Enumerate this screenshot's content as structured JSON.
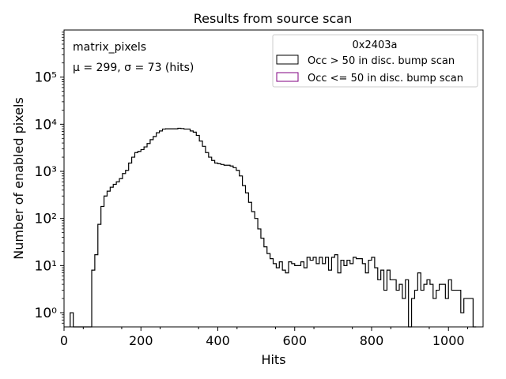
{
  "chart_data": {
    "type": "histogram",
    "title": "Results from source scan",
    "xlabel": "Hits",
    "ylabel": "Number of enabled pixels",
    "xlim": [
      0,
      1090
    ],
    "ylim": [
      0.5,
      1000000
    ],
    "yscale": "log",
    "grid": false,
    "bin_width": 8,
    "x_ticks": [
      0,
      200,
      400,
      600,
      800,
      1000
    ],
    "x_tick_labels": [
      "0",
      "200",
      "400",
      "600",
      "800",
      "1000"
    ],
    "y_ticks": [
      1,
      10,
      100,
      1000,
      10000,
      100000
    ],
    "y_tick_labels": [
      "10⁰",
      "10¹",
      "10²",
      "10³",
      "10⁴",
      "10⁵"
    ],
    "annotations": {
      "dataset": "matrix_pixels",
      "stats": "μ = 299, σ = 73 (hits)"
    },
    "legend": {
      "title": "0x2403a",
      "placement": "top-right",
      "entries": [
        {
          "label": "Occ > 50 in disc. bump scan",
          "color": "#000000"
        },
        {
          "label": "Occ <= 50 in disc. bump scan",
          "color": "#800080"
        }
      ]
    },
    "series": [
      {
        "name": "Occ > 50 in disc. bump scan",
        "color": "#000000",
        "bins": [
          [
            16,
            24,
            1
          ],
          [
            24,
            32,
            0
          ],
          [
            32,
            40,
            0
          ],
          [
            40,
            48,
            0
          ],
          [
            48,
            56,
            0
          ],
          [
            56,
            64,
            0
          ],
          [
            64,
            72,
            0
          ],
          [
            72,
            80,
            8
          ],
          [
            80,
            88,
            17
          ],
          [
            88,
            96,
            75
          ],
          [
            96,
            104,
            180
          ],
          [
            104,
            112,
            300
          ],
          [
            112,
            120,
            380
          ],
          [
            120,
            128,
            460
          ],
          [
            128,
            136,
            530
          ],
          [
            136,
            144,
            600
          ],
          [
            144,
            152,
            700
          ],
          [
            152,
            160,
            900
          ],
          [
            160,
            168,
            1050
          ],
          [
            168,
            176,
            1500
          ],
          [
            176,
            184,
            2000
          ],
          [
            184,
            192,
            2500
          ],
          [
            192,
            200,
            2650
          ],
          [
            200,
            208,
            2900
          ],
          [
            208,
            216,
            3300
          ],
          [
            216,
            224,
            3900
          ],
          [
            224,
            232,
            4700
          ],
          [
            232,
            240,
            5500
          ],
          [
            240,
            248,
            6600
          ],
          [
            248,
            256,
            7200
          ],
          [
            256,
            264,
            7900
          ],
          [
            264,
            272,
            8000
          ],
          [
            272,
            280,
            8000
          ],
          [
            280,
            288,
            8000
          ],
          [
            288,
            296,
            8000
          ],
          [
            296,
            304,
            8200
          ],
          [
            304,
            312,
            8100
          ],
          [
            312,
            320,
            7900
          ],
          [
            320,
            328,
            7900
          ],
          [
            328,
            336,
            7200
          ],
          [
            336,
            344,
            6800
          ],
          [
            344,
            352,
            5800
          ],
          [
            352,
            360,
            4400
          ],
          [
            360,
            368,
            3400
          ],
          [
            368,
            376,
            2500
          ],
          [
            376,
            384,
            2000
          ],
          [
            384,
            392,
            1700
          ],
          [
            392,
            400,
            1500
          ],
          [
            400,
            408,
            1450
          ],
          [
            408,
            416,
            1400
          ],
          [
            416,
            424,
            1350
          ],
          [
            424,
            432,
            1350
          ],
          [
            432,
            440,
            1300
          ],
          [
            440,
            448,
            1200
          ],
          [
            448,
            456,
            1050
          ],
          [
            456,
            464,
            800
          ],
          [
            464,
            472,
            500
          ],
          [
            472,
            480,
            350
          ],
          [
            480,
            488,
            220
          ],
          [
            488,
            496,
            140
          ],
          [
            496,
            504,
            100
          ],
          [
            504,
            512,
            60
          ],
          [
            512,
            520,
            38
          ],
          [
            520,
            528,
            25
          ],
          [
            528,
            536,
            18
          ],
          [
            536,
            544,
            14
          ],
          [
            544,
            552,
            11
          ],
          [
            552,
            560,
            9
          ],
          [
            560,
            568,
            12
          ],
          [
            568,
            576,
            8
          ],
          [
            576,
            584,
            7
          ],
          [
            584,
            592,
            12
          ],
          [
            592,
            600,
            11
          ],
          [
            600,
            608,
            10
          ],
          [
            608,
            616,
            10
          ],
          [
            616,
            624,
            12
          ],
          [
            624,
            632,
            9
          ],
          [
            632,
            640,
            15
          ],
          [
            640,
            648,
            13
          ],
          [
            648,
            656,
            15
          ],
          [
            656,
            664,
            11
          ],
          [
            664,
            672,
            15
          ],
          [
            672,
            680,
            11
          ],
          [
            680,
            688,
            15
          ],
          [
            688,
            696,
            8
          ],
          [
            696,
            704,
            15
          ],
          [
            704,
            712,
            17
          ],
          [
            712,
            720,
            7
          ],
          [
            720,
            728,
            13
          ],
          [
            728,
            736,
            10
          ],
          [
            736,
            744,
            13
          ],
          [
            744,
            752,
            11
          ],
          [
            752,
            760,
            15
          ],
          [
            760,
            768,
            14
          ],
          [
            768,
            776,
            14
          ],
          [
            776,
            784,
            11
          ],
          [
            784,
            792,
            7
          ],
          [
            792,
            800,
            13
          ],
          [
            800,
            808,
            15
          ],
          [
            808,
            816,
            9
          ],
          [
            816,
            824,
            5
          ],
          [
            824,
            832,
            8
          ],
          [
            832,
            840,
            3
          ],
          [
            840,
            848,
            8
          ],
          [
            848,
            856,
            5
          ],
          [
            856,
            864,
            5
          ],
          [
            864,
            872,
            3
          ],
          [
            872,
            880,
            4
          ],
          [
            880,
            888,
            2
          ],
          [
            888,
            896,
            5
          ],
          [
            896,
            904,
            0
          ],
          [
            904,
            912,
            2
          ],
          [
            912,
            920,
            3
          ],
          [
            920,
            928,
            7
          ],
          [
            928,
            936,
            3
          ],
          [
            936,
            944,
            4
          ],
          [
            944,
            952,
            5
          ],
          [
            952,
            960,
            4
          ],
          [
            960,
            968,
            2
          ],
          [
            968,
            976,
            3
          ],
          [
            976,
            984,
            4
          ],
          [
            984,
            992,
            4
          ],
          [
            992,
            1000,
            2
          ],
          [
            1000,
            1008,
            5
          ],
          [
            1008,
            1016,
            3
          ],
          [
            1016,
            1024,
            3
          ],
          [
            1024,
            1032,
            3
          ],
          [
            1032,
            1040,
            1
          ],
          [
            1040,
            1048,
            2
          ],
          [
            1048,
            1056,
            2
          ],
          [
            1056,
            1064,
            2
          ],
          [
            1064,
            1072,
            0
          ]
        ]
      },
      {
        "name": "Occ <= 50 in disc. bump scan",
        "color": "#800080",
        "bins": []
      }
    ]
  }
}
